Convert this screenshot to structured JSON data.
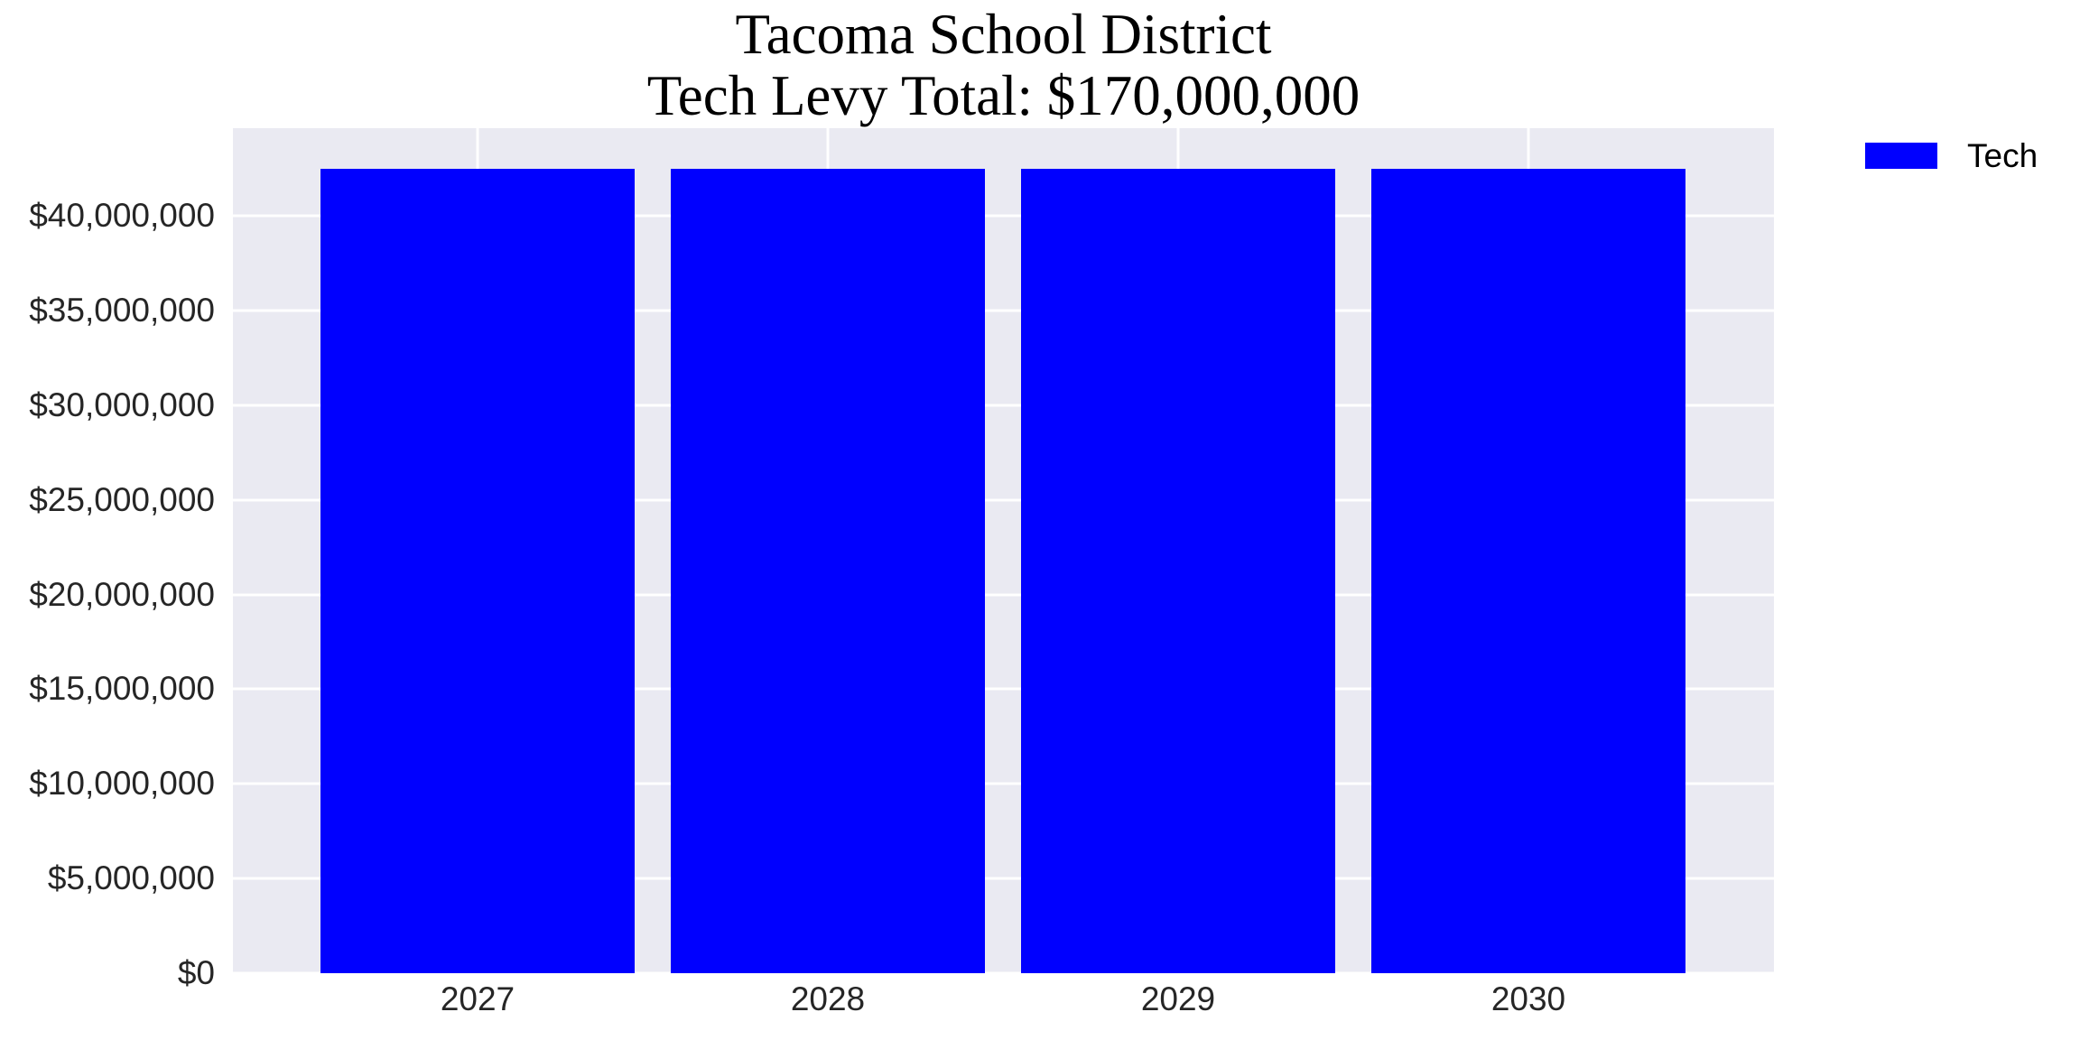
{
  "title": {
    "line1": "Tacoma School District",
    "line2": "Tech Levy Total: $170,000,000"
  },
  "legend": {
    "items": [
      {
        "label": "Tech",
        "color": "#0000ff"
      }
    ]
  },
  "chart_data": {
    "type": "bar",
    "title": "Tacoma School District",
    "subtitle": "Tech Levy Total: $170,000,000",
    "categories": [
      "2027",
      "2028",
      "2029",
      "2030"
    ],
    "series": [
      {
        "name": "Tech",
        "color": "#0000ff",
        "values": [
          42500000,
          42500000,
          42500000,
          42500000
        ]
      }
    ],
    "yticks": [
      {
        "value": 0,
        "label": "$0"
      },
      {
        "value": 5000000,
        "label": "$5,000,000"
      },
      {
        "value": 10000000,
        "label": "$10,000,000"
      },
      {
        "value": 15000000,
        "label": "$15,000,000"
      },
      {
        "value": 20000000,
        "label": "$20,000,000"
      },
      {
        "value": 25000000,
        "label": "$25,000,000"
      },
      {
        "value": 30000000,
        "label": "$30,000,000"
      },
      {
        "value": 35000000,
        "label": "$35,000,000"
      },
      {
        "value": 40000000,
        "label": "$40,000,000"
      }
    ],
    "ylim": [
      0,
      44625000
    ],
    "xlabel": "",
    "ylabel": "",
    "grid": true,
    "plot_background": "#eaeaf2",
    "gridline_color": "#ffffff",
    "tick_text_color": "#262626",
    "legend_position": "upper-right-outside"
  }
}
